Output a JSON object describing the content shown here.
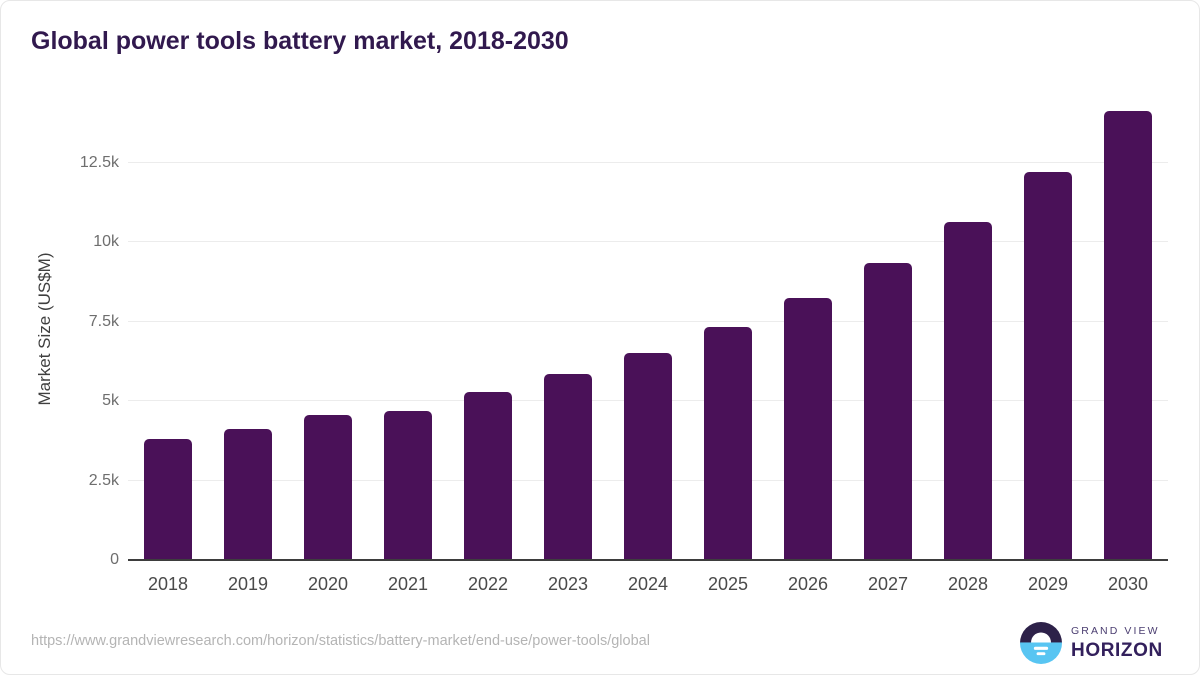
{
  "page": {
    "title": "Global power tools battery market, 2018-2030",
    "source_url": "https://www.grandviewresearch.com/horizon/statistics/battery-market/end-use/power-tools/global",
    "brand": {
      "line1": "GRAND VIEW",
      "line2": "HORIZON"
    }
  },
  "colors": {
    "title": "#31194e",
    "bar": "#4a1158",
    "axis": "#3d3d3d",
    "grid": "#ececec",
    "ytick": "#6e6e6e",
    "xtick": "#4a4a4a",
    "ylabel": "#3f3f3f",
    "url": "#b4b4b4",
    "logo_dark": "#2d2149",
    "logo_blue": "#58c5f2",
    "logo_text": "#33205c",
    "logo_text_small": "#4a3d70"
  },
  "chart_data": {
    "type": "bar",
    "title": "Global power tools battery market, 2018-2030",
    "categories": [
      "2018",
      "2019",
      "2020",
      "2021",
      "2022",
      "2023",
      "2024",
      "2025",
      "2026",
      "2027",
      "2028",
      "2029",
      "2030"
    ],
    "values": [
      3810,
      4130,
      4550,
      4690,
      5280,
      5860,
      6520,
      7320,
      8230,
      9340,
      10630,
      12210,
      14130
    ],
    "xlabel": "",
    "ylabel": "Market Size (US$M)",
    "ylim": [
      0,
      14500
    ],
    "yticks": [
      0,
      2500,
      5000,
      7500,
      10000,
      12500
    ],
    "ytick_labels": [
      "0",
      "2.5k",
      "5k",
      "7.5k",
      "10k",
      "12.5k"
    ],
    "grid": "horizontal",
    "legend": "none",
    "bar_color": "#4a1158"
  }
}
